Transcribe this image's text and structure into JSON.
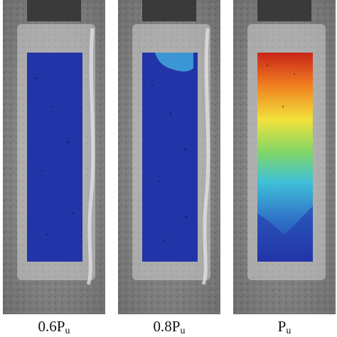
{
  "panels": [
    {
      "base": "0.",
      "ratio": "6P",
      "subscript": "u",
      "load_fraction": 0.6,
      "field_state": "uniform-low"
    },
    {
      "base": "0.",
      "ratio": "8P",
      "subscript": "u",
      "load_fraction": 0.8,
      "field_state": "onset-at-top"
    },
    {
      "base": "",
      "ratio": "P",
      "subscript": "u",
      "load_fraction": 1.0,
      "field_state": "full-gradient"
    }
  ],
  "colors": {
    "concrete": "#8a8a8a",
    "field_low": "#2234a8",
    "field_mid_cyan": "#3fc0d8",
    "field_mid_green": "#7fd66a",
    "field_mid_yellow": "#f2e23a",
    "field_high_orange": "#ef7b1f",
    "field_peak_red": "#c8241a"
  }
}
